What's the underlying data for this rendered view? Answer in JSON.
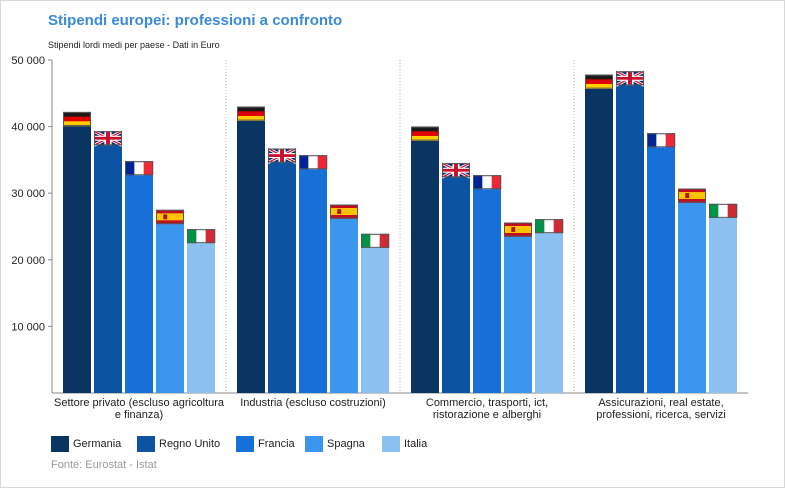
{
  "title": "Stipendi europei: professioni a confronto",
  "subtitle": "Stipendi lordi medi per paese - Dati in Euro",
  "source": "Fonte: Eurostat - Istat",
  "colors": {
    "Germania": "#0a3461",
    "Regno Unito": "#0c54a2",
    "Francia": "#1670d8",
    "Spagna": "#3b97ee",
    "Italia": "#8cc0f0"
  },
  "chart_data": {
    "type": "bar",
    "title": "Stipendi europei: professioni a confronto",
    "subtitle": "Stipendi lordi medi per paese - Dati in Euro",
    "categories": [
      [
        "Settore privato (escluso agricoltura",
        "e finanza)"
      ],
      [
        "Industria (escluso costruzioni)"
      ],
      [
        "Commercio, trasporti, ict,",
        "ristorazione e alberghi"
      ],
      [
        "Assicurazioni, real estate,",
        "professioni, ricerca, servizi"
      ]
    ],
    "series": [
      {
        "name": "Germania",
        "flag": "flag-germany-icon",
        "values": [
          42200,
          43000,
          40000,
          47800
        ]
      },
      {
        "name": "Regno Unito",
        "flag": "flag-uk-icon",
        "values": [
          39300,
          36700,
          34500,
          48300
        ]
      },
      {
        "name": "Francia",
        "flag": "flag-france-icon",
        "values": [
          34800,
          35700,
          32700,
          39000
        ]
      },
      {
        "name": "Spagna",
        "flag": "flag-spain-icon",
        "values": [
          27500,
          28300,
          25600,
          30700
        ]
      },
      {
        "name": "Italia",
        "flag": "flag-italy-icon",
        "values": [
          24600,
          23900,
          26100,
          28400
        ]
      }
    ],
    "ylim": [
      0,
      50000
    ],
    "yticks": [
      {
        "value": 10000,
        "label": "10 000"
      },
      {
        "value": 20000,
        "label": "20 000"
      },
      {
        "value": 30000,
        "label": "30 000"
      },
      {
        "value": 40000,
        "label": "40 000"
      },
      {
        "value": 50000,
        "label": "50 000"
      }
    ],
    "grid": false,
    "legend": "bottom"
  }
}
